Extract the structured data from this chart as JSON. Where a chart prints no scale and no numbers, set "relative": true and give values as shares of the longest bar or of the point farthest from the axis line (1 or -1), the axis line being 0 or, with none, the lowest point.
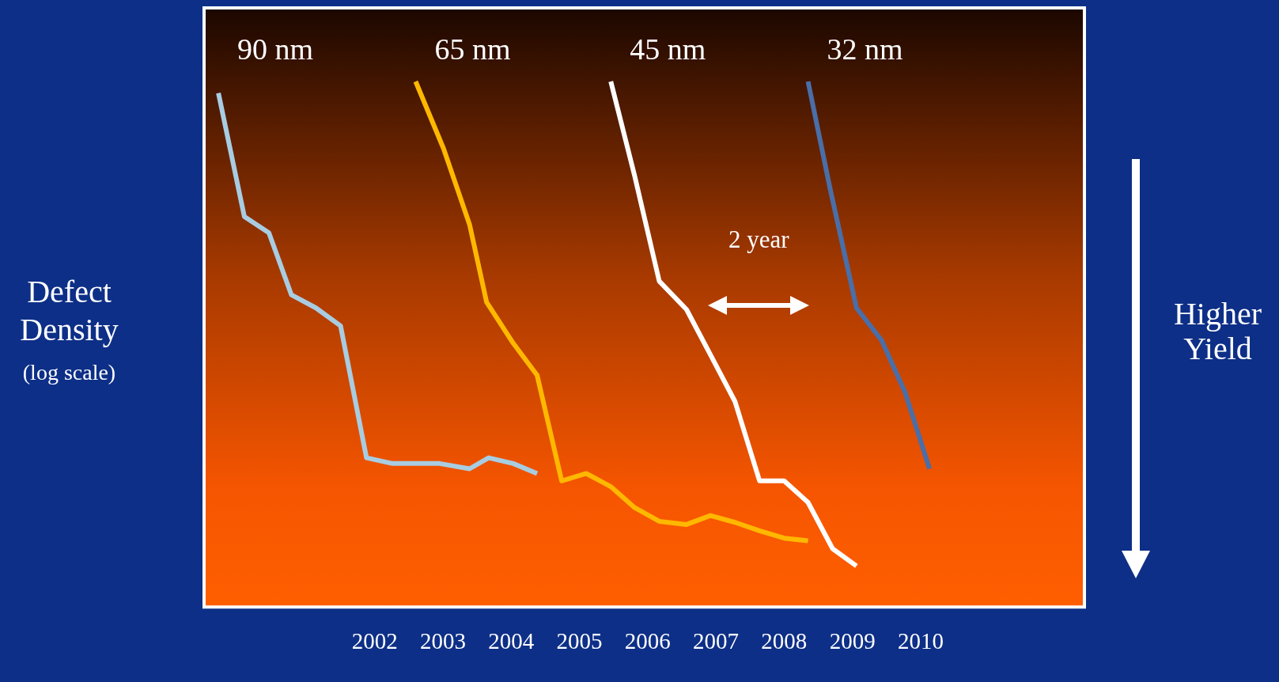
{
  "chart_data": {
    "type": "line",
    "relative": true,
    "ylabel": "Defect Density",
    "y2label": "Higher Yield",
    "xlim": [
      1999.5,
      2012.4
    ],
    "xticks": [
      2002,
      2003,
      2004,
      2005,
      2006,
      2007,
      2008,
      2009,
      2010
    ],
    "grid": false,
    "legend": false,
    "marker": "none",
    "line_style": "solid",
    "tick_labels": "x",
    "annotations": [
      "2 year",
      "(log scale)"
    ],
    "series": [
      {
        "name": "90 nm",
        "color": "#a8cde2",
        "x": [
          1999.71,
          2000.09,
          2000.45,
          2000.78,
          2001.14,
          2001.5,
          2001.88,
          2002.26,
          2002.95,
          2003.39,
          2003.67,
          2004.03,
          2004.38
        ],
        "values": [
          0.978,
          0.743,
          0.712,
          0.594,
          0.569,
          0.535,
          0.284,
          0.273,
          0.273,
          0.263,
          0.284,
          0.273,
          0.254
        ]
      },
      {
        "name": "65 nm",
        "color": "#ffb800",
        "x": [
          2002.6,
          2003.01,
          2003.39,
          2003.64,
          2004.03,
          2004.38,
          2004.74,
          2005.1,
          2005.46,
          2005.81,
          2006.17,
          2006.57,
          2006.92,
          2007.28,
          2007.64,
          2008.0,
          2008.35
        ],
        "values": [
          1.0,
          0.872,
          0.728,
          0.58,
          0.502,
          0.441,
          0.24,
          0.254,
          0.229,
          0.189,
          0.163,
          0.157,
          0.174,
          0.161,
          0.145,
          0.131,
          0.126
        ]
      },
      {
        "name": "45 nm",
        "color": "#ffffff",
        "x": [
          2005.46,
          2005.81,
          2006.17,
          2006.57,
          2006.92,
          2007.28,
          2007.64,
          2008.0,
          2008.35,
          2008.71,
          2009.06
        ],
        "values": [
          1.0,
          0.82,
          0.62,
          0.566,
          0.48,
          0.391,
          0.24,
          0.24,
          0.199,
          0.111,
          0.078
        ]
      },
      {
        "name": "32 nm",
        "color": "#4a6ea8",
        "x": [
          2008.35,
          2008.67,
          2009.06,
          2009.43,
          2009.77,
          2010.13
        ],
        "values": [
          1.0,
          0.798,
          0.569,
          0.507,
          0.409,
          0.263
        ]
      }
    ]
  }
}
